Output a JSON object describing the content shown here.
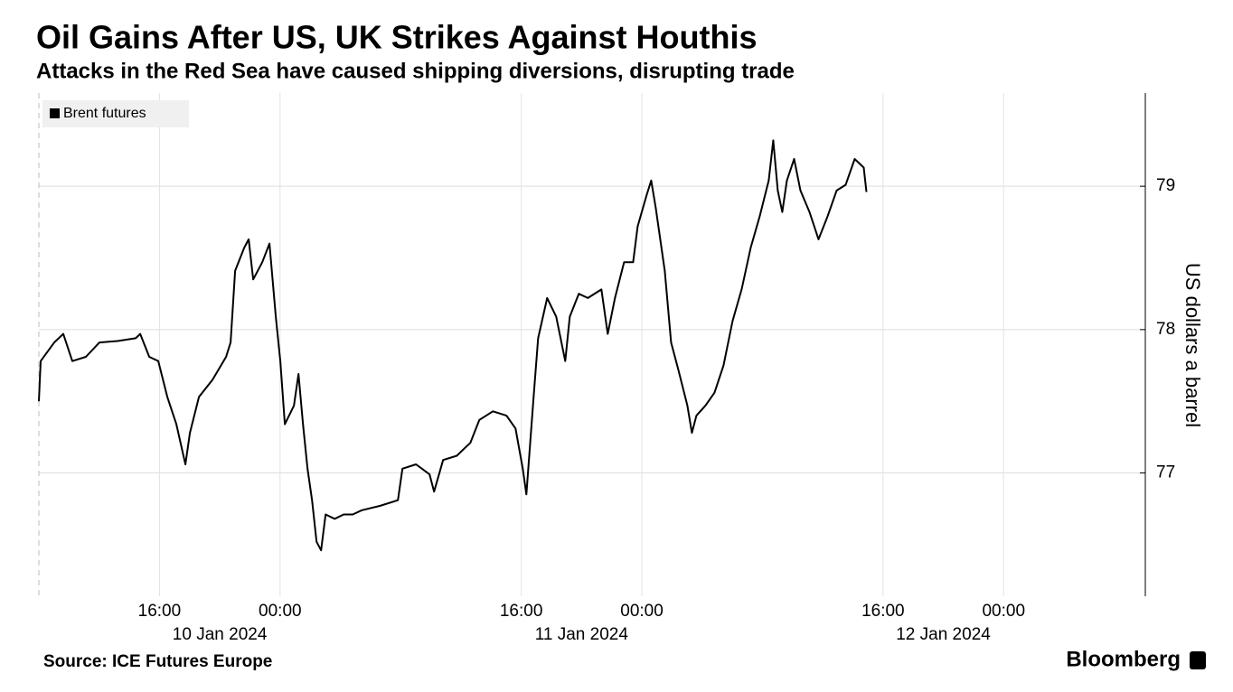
{
  "chart_data": {
    "type": "line",
    "title": "Oil Gains After US, UK Strikes Against Houthis",
    "subtitle": "Attacks in the Red Sea have caused shipping diversions, disrupting trade",
    "y_axis_label": "US dollars a barrel",
    "source": "Source: ICE Futures Europe",
    "brand": "Bloomberg",
    "xlim": [
      8,
      81.4
    ],
    "xticks": [
      {
        "value": 16,
        "label": "16:00"
      },
      {
        "value": 24,
        "label": "00:00"
      },
      {
        "value": 40,
        "label": "16:00"
      },
      {
        "value": 48,
        "label": "00:00"
      },
      {
        "value": 64,
        "label": "16:00"
      },
      {
        "value": 72,
        "label": "00:00"
      }
    ],
    "date_labels": [
      {
        "value": 20,
        "label": "10 Jan 2024"
      },
      {
        "value": 44,
        "label": "11 Jan 2024"
      },
      {
        "value": 68,
        "label": "12 Jan 2024"
      }
    ],
    "ylim": [
      76.14,
      79.65
    ],
    "yticks": [
      77,
      78,
      79
    ],
    "grid": true,
    "legend": "top-left",
    "series": [
      {
        "name": "Brent futures",
        "color": "#000000",
        "x": [
          8.0,
          8.12,
          9.02,
          9.62,
          10.22,
          11.12,
          12.02,
          13.22,
          14.42,
          14.72,
          15.32,
          15.92,
          16.52,
          17.12,
          17.72,
          18.02,
          18.62,
          19.52,
          20.42,
          20.72,
          21.02,
          21.62,
          21.92,
          22.22,
          22.82,
          23.3,
          23.72,
          24.02,
          24.32,
          24.92,
          25.22,
          25.52,
          25.82,
          26.12,
          26.42,
          26.72,
          27.02,
          27.62,
          28.22,
          28.82,
          29.42,
          30.62,
          31.82,
          32.12,
          33.02,
          33.92,
          34.22,
          34.82,
          35.72,
          36.62,
          37.22,
          38.12,
          39.02,
          39.62,
          40.1,
          40.34,
          40.82,
          41.12,
          41.72,
          42.32,
          42.92,
          43.22,
          43.82,
          44.42,
          45.32,
          45.74,
          46.22,
          46.82,
          47.42,
          47.72,
          48.32,
          48.62,
          48.92,
          49.52,
          49.94,
          50.42,
          51.02,
          51.32,
          51.62,
          52.22,
          52.82,
          53.42,
          54.02,
          54.62,
          55.22,
          55.82,
          56.42,
          56.72,
          57.02,
          57.32,
          57.62,
          58.1,
          58.52,
          59.12,
          59.72,
          60.32,
          60.92,
          61.52,
          62.12,
          62.72,
          62.9
        ],
        "values": [
          77.5,
          77.78,
          77.91,
          77.97,
          77.78,
          77.81,
          77.91,
          77.92,
          77.94,
          77.97,
          77.81,
          77.78,
          77.53,
          77.34,
          77.06,
          77.28,
          77.53,
          77.65,
          77.81,
          77.91,
          78.41,
          78.57,
          78.63,
          78.35,
          78.47,
          78.6,
          78.09,
          77.78,
          77.34,
          77.47,
          77.69,
          77.34,
          77.03,
          76.81,
          76.52,
          76.46,
          76.71,
          76.68,
          76.71,
          76.71,
          76.74,
          76.77,
          76.81,
          77.03,
          77.06,
          76.99,
          76.87,
          77.09,
          77.12,
          77.21,
          77.37,
          77.43,
          77.4,
          77.31,
          77.03,
          76.85,
          77.53,
          77.94,
          78.22,
          78.09,
          77.78,
          78.09,
          78.25,
          78.22,
          78.28,
          77.97,
          78.22,
          78.47,
          78.47,
          78.72,
          78.94,
          79.04,
          78.85,
          78.41,
          77.91,
          77.72,
          77.47,
          77.28,
          77.4,
          77.47,
          77.56,
          77.75,
          78.06,
          78.28,
          78.57,
          78.79,
          79.04,
          79.32,
          78.97,
          78.82,
          79.04,
          79.19,
          78.97,
          78.82,
          78.63,
          78.79,
          78.97,
          79.01,
          79.19,
          79.13,
          78.96
        ]
      }
    ]
  }
}
